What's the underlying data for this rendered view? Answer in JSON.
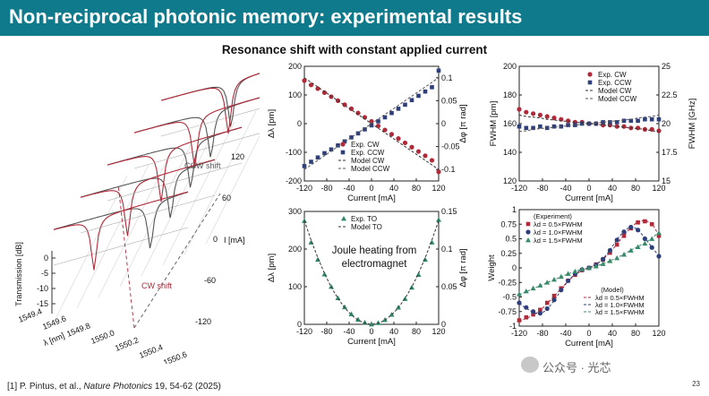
{
  "slide": {
    "title": "Non-reciprocal photonic memory: experimental results",
    "subtitle": "Resonance shift with constant applied current",
    "citation_prefix": "[1] P. Pintus, et al., ",
    "citation_journal": "Nature Photonics",
    "citation_suffix": " 19, 54-62 (2025)",
    "page_number": "23",
    "watermark": "公众号 · 光芯"
  },
  "colors": {
    "title_bg": "#0f7a8c",
    "cw": "#b02a3a",
    "ccw": "#2f3f7a",
    "to": "#2f8a6a",
    "w15": "#3a8a6a"
  },
  "chart_data": [
    {
      "id": "waterfall",
      "type": "line",
      "zlabel": "Transmission [dB]",
      "xlabel": "λ [nm]",
      "ylabel": "I [mA]",
      "x_ticks": [
        "1549.4",
        "1549.6",
        "1549.8",
        "1550.0",
        "1550.2",
        "1550.4",
        "1550.6"
      ],
      "z_ticks": [
        "0",
        "-5",
        "-10",
        "-15"
      ],
      "y_ticks": [
        "120",
        "60",
        "0",
        "-60",
        "-120"
      ],
      "annotations": [
        "CCW shift",
        "CW shift"
      ]
    },
    {
      "id": "shift",
      "type": "scatter",
      "xlabel": "Current [mA]",
      "ylabel": "Δλ [pm]",
      "y2label": "Δφ [π rad]",
      "xlim": [
        -120,
        120
      ],
      "ylim": [
        -200,
        200
      ],
      "x_ticks": [
        "-120",
        "-80",
        "-40",
        "0",
        "40",
        "80",
        "120"
      ],
      "y_ticks": [
        "200",
        "100",
        "0",
        "-100",
        "-200"
      ],
      "y2_ticks": [
        "0.1",
        "0.05",
        "0",
        "-0.05",
        "-0.1"
      ],
      "x": [
        -120,
        -108,
        -96,
        -84,
        -72,
        -60,
        -48,
        -36,
        -24,
        -12,
        0,
        12,
        24,
        36,
        48,
        60,
        72,
        84,
        96,
        108,
        120
      ],
      "series": [
        {
          "name": "Exp. CW",
          "marker": "circle",
          "values": [
            150,
            135,
            122,
            108,
            94,
            80,
            66,
            52,
            37,
            22,
            8,
            -8,
            -22,
            -37,
            -52,
            -67,
            -82,
            -97,
            -112,
            -128,
            -168
          ]
        },
        {
          "name": "Exp. CCW",
          "marker": "square",
          "values": [
            -148,
            -133,
            -118,
            -103,
            -90,
            -76,
            -62,
            -48,
            -34,
            -20,
            -6,
            8,
            22,
            37,
            52,
            66,
            82,
            97,
            112,
            127,
            185
          ]
        },
        {
          "name": "Model CW",
          "style": "dashed",
          "values": [
            160,
            144,
            128,
            112,
            96,
            80,
            64,
            48,
            32,
            16,
            0,
            -16,
            -32,
            -48,
            -64,
            -80,
            -96,
            -112,
            -128,
            -144,
            -160
          ]
        },
        {
          "name": "Model CCW",
          "style": "dashed",
          "values": [
            -160,
            -144,
            -128,
            -112,
            -96,
            -80,
            -64,
            -48,
            -32,
            -16,
            0,
            16,
            32,
            48,
            64,
            80,
            96,
            112,
            128,
            144,
            160
          ]
        }
      ],
      "legend": "bottom-right"
    },
    {
      "id": "fwhm",
      "type": "scatter",
      "xlabel": "Current [mA]",
      "ylabel": "FWHM [pm]",
      "y2label": "FWHM [GHz]",
      "xlim": [
        -120,
        120
      ],
      "ylim": [
        120,
        200
      ],
      "x_ticks": [
        "-120",
        "-80",
        "-40",
        "0",
        "40",
        "80",
        "120"
      ],
      "y_ticks": [
        "200",
        "180",
        "160",
        "140",
        "120"
      ],
      "y2_ticks": [
        "25",
        "22.5",
        "20",
        "17.5",
        "15"
      ],
      "x": [
        -120,
        -108,
        -96,
        -84,
        -72,
        -60,
        -48,
        -36,
        -24,
        -12,
        0,
        12,
        24,
        36,
        48,
        60,
        72,
        84,
        96,
        108,
        120
      ],
      "series": [
        {
          "name": "Exp. CW",
          "marker": "circle",
          "values": [
            170,
            168,
            167,
            166,
            165,
            164,
            163,
            162,
            161,
            161,
            160,
            160,
            159,
            159,
            158,
            158,
            157,
            157,
            156,
            156,
            155
          ]
        },
        {
          "name": "Exp. CCW",
          "marker": "square",
          "values": [
            158,
            157,
            157,
            158,
            157,
            158,
            158,
            159,
            159,
            160,
            160,
            160,
            161,
            161,
            161,
            162,
            162,
            162,
            163,
            163,
            163
          ]
        },
        {
          "name": "Model CW",
          "style": "dashed",
          "values": [
            166,
            165,
            164.5,
            164,
            163,
            162.5,
            162,
            161.5,
            161,
            160.5,
            160,
            159.5,
            159,
            158.5,
            158,
            157.5,
            157,
            156.5,
            156,
            155,
            154.5
          ]
        },
        {
          "name": "Model CCW",
          "style": "dashed",
          "values": [
            154.5,
            155,
            156,
            156.5,
            157,
            157.5,
            158,
            158.5,
            159,
            159.5,
            160,
            160.5,
            161,
            161.5,
            162,
            162.5,
            163,
            164,
            164.5,
            165,
            166
          ]
        }
      ],
      "legend": "top-right"
    },
    {
      "id": "joule",
      "type": "scatter",
      "xlabel": "Current [mA]",
      "ylabel": "Δλ [pm]",
      "y2label": "Δφ [π rad]",
      "xlim": [
        -120,
        120
      ],
      "ylim": [
        0,
        300
      ],
      "x_ticks": [
        "-120",
        "-80",
        "-40",
        "0",
        "40",
        "80",
        "120"
      ],
      "y_ticks": [
        "300",
        "200",
        "100",
        "0"
      ],
      "y2_ticks": [
        "0.15",
        "0.1",
        "0.05",
        "0"
      ],
      "annotation": "Joule heating from electromagnet",
      "x": [
        -120,
        -108,
        -96,
        -84,
        -72,
        -60,
        -48,
        -36,
        -24,
        -12,
        0,
        12,
        24,
        36,
        48,
        60,
        72,
        84,
        96,
        108,
        120
      ],
      "series": [
        {
          "name": "Exp. TO",
          "marker": "triangle",
          "values": [
            275,
            218,
            172,
            133,
            100,
            70,
            46,
            27,
            13,
            5,
            0,
            4,
            12,
            26,
            45,
            68,
            98,
            132,
            172,
            218,
            278
          ]
        },
        {
          "name": "Model TO",
          "style": "dashed",
          "values": [
            276,
            224,
            177,
            135,
            99,
            69,
            44,
            25,
            11,
            3,
            0,
            3,
            11,
            25,
            44,
            69,
            99,
            135,
            177,
            224,
            276
          ]
        }
      ],
      "legend": "top-center"
    },
    {
      "id": "weight",
      "type": "scatter",
      "xlabel": "Current [mA]",
      "ylabel": "Weight",
      "xlim": [
        -120,
        120
      ],
      "ylim": [
        -1,
        1
      ],
      "x_ticks": [
        "-120",
        "-80",
        "-40",
        "0",
        "40",
        "80",
        "120"
      ],
      "y_ticks": [
        "1",
        "0.75",
        "0.5",
        "0.25",
        "0",
        "-0.25",
        "-0.5",
        "-0.75",
        "-1"
      ],
      "legend_title_exp": "(Experiment)",
      "legend_title_model": "(Model)",
      "x": [
        -120,
        -108,
        -96,
        -84,
        -72,
        -60,
        -48,
        -36,
        -24,
        -12,
        0,
        12,
        24,
        36,
        48,
        60,
        72,
        84,
        96,
        108,
        120
      ],
      "series": [
        {
          "name": "λd = 0.5×FWHM",
          "marker": "square",
          "values": [
            -0.9,
            -0.85,
            -0.8,
            -0.72,
            -0.6,
            -0.48,
            -0.35,
            -0.22,
            -0.12,
            -0.04,
            0,
            0.06,
            0.14,
            0.26,
            0.4,
            0.55,
            0.68,
            0.78,
            0.8,
            0.75,
            0.55
          ]
        },
        {
          "name": "λd = 1.0×FWHM",
          "marker": "circle",
          "values": [
            -0.6,
            -0.68,
            -0.75,
            -0.78,
            -0.7,
            -0.55,
            -0.38,
            -0.22,
            -0.1,
            -0.03,
            0,
            0.05,
            0.15,
            0.3,
            0.48,
            0.62,
            0.7,
            0.65,
            0.5,
            0.35,
            0.2
          ]
        },
        {
          "name": "λd = 1.5×FWHM",
          "marker": "triangle",
          "values": [
            -0.45,
            -0.4,
            -0.35,
            -0.3,
            -0.25,
            -0.2,
            -0.15,
            -0.1,
            -0.06,
            -0.02,
            0,
            0.03,
            0.07,
            0.12,
            0.17,
            0.23,
            0.3,
            0.36,
            0.42,
            0.5,
            0.6
          ]
        }
      ],
      "model_legend": [
        "λd = 0.5×FWHM",
        "λd = 1.0×FWHM",
        "λd = 1.5×FWHM"
      ]
    }
  ]
}
